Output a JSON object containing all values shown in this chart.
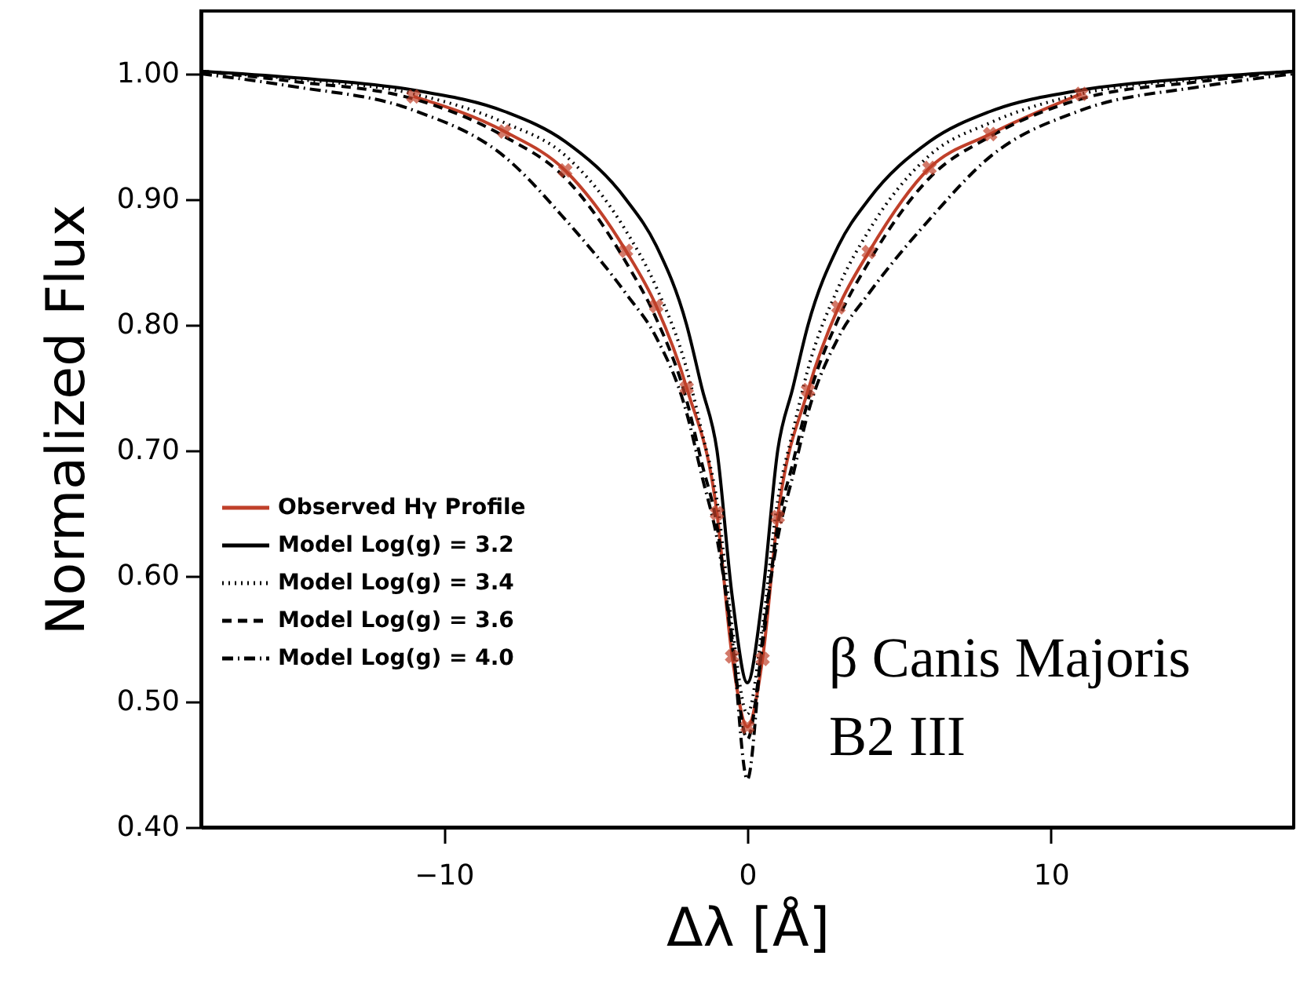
{
  "chart_data": {
    "type": "line",
    "xlabel": "Δλ  [Å]",
    "ylabel": "Normalized Flux",
    "annotations": [
      "β Canis Majoris",
      "B2 III"
    ],
    "x": [
      -18,
      -15,
      -11,
      -8,
      -6,
      -4,
      -3,
      -2,
      -1.5,
      -1,
      -0.5,
      0,
      0.5,
      1,
      1.5,
      2,
      3,
      4,
      6,
      8,
      11,
      15,
      18
    ],
    "xlim": [
      -18,
      18
    ],
    "xticks": [
      -10,
      0,
      10
    ],
    "ylim": [
      0.4,
      1.05
    ],
    "yticks": [
      {
        "value": 0.4,
        "label": "0.40"
      },
      {
        "value": 0.5,
        "label": "0.50"
      },
      {
        "value": 0.6,
        "label": "0.60"
      },
      {
        "value": 0.7,
        "label": "0.70"
      },
      {
        "value": 0.8,
        "label": "0.80"
      },
      {
        "value": 0.9,
        "label": "0.90"
      },
      {
        "value": 1.0,
        "label": "1.00"
      }
    ],
    "grid": false,
    "legend": "left",
    "series": [
      {
        "name": "Observed Hγ Profile",
        "color": "#c0402a",
        "marker": "cross",
        "line_style": "solid",
        "x": [
          -11,
          -8,
          -6,
          -4,
          -3,
          -2,
          -1,
          -0.5,
          0,
          0.5,
          1,
          2,
          3,
          4,
          6,
          8,
          11
        ],
        "values": [
          0.982,
          0.954,
          0.923,
          0.859,
          0.815,
          0.75,
          0.65,
          0.536,
          0.48,
          0.534,
          0.647,
          0.748,
          0.814,
          0.858,
          0.925,
          0.952,
          0.984
        ]
      },
      {
        "name": "Model Log(g) = 3.2",
        "color": "#000000",
        "marker": "none",
        "line_style": "solid",
        "values": [
          1.002,
          0.997,
          0.987,
          0.97,
          0.946,
          0.9,
          0.863,
          0.8,
          0.75,
          0.7,
          0.584,
          0.515,
          0.584,
          0.7,
          0.75,
          0.8,
          0.863,
          0.9,
          0.946,
          0.97,
          0.987,
          0.997,
          1.002
        ]
      },
      {
        "name": "Model Log(g) = 3.4",
        "color": "#000000",
        "marker": "none",
        "line_style": "dotted",
        "values": [
          1.002,
          0.996,
          0.984,
          0.961,
          0.935,
          0.875,
          0.83,
          0.765,
          0.715,
          0.66,
          0.56,
          0.49,
          0.56,
          0.66,
          0.715,
          0.765,
          0.83,
          0.875,
          0.935,
          0.961,
          0.984,
          0.996,
          1.002
        ]
      },
      {
        "name": "Model Log(g) = 3.6",
        "color": "#000000",
        "marker": "none",
        "line_style": "dashed",
        "values": [
          1.002,
          0.994,
          0.98,
          0.95,
          0.917,
          0.85,
          0.805,
          0.74,
          0.69,
          0.64,
          0.545,
          0.47,
          0.545,
          0.64,
          0.69,
          0.74,
          0.805,
          0.85,
          0.917,
          0.95,
          0.98,
          0.994,
          1.002
        ]
      },
      {
        "name": "Model Log(g) = 4.0",
        "color": "#000000",
        "marker": "none",
        "line_style": "dashdot",
        "values": [
          1.0,
          0.99,
          0.971,
          0.934,
          0.884,
          0.825,
          0.79,
          0.73,
          0.68,
          0.63,
          0.55,
          0.438,
          0.55,
          0.63,
          0.68,
          0.73,
          0.79,
          0.825,
          0.884,
          0.934,
          0.971,
          0.99,
          1.0
        ]
      }
    ]
  }
}
